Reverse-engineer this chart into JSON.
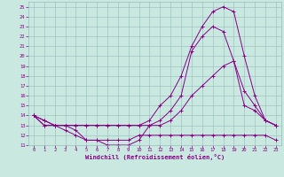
{
  "bg_color": "#c8e8e0",
  "line_color": "#880088",
  "grid_color": "#99bbbb",
  "xlabel": "Windchill (Refroidissement éolien,°C)",
  "xlim": [
    -0.5,
    23.5
  ],
  "ylim": [
    11,
    25.5
  ],
  "xticks": [
    0,
    1,
    2,
    3,
    4,
    5,
    6,
    7,
    8,
    9,
    10,
    11,
    12,
    13,
    14,
    15,
    16,
    17,
    18,
    19,
    20,
    21,
    22,
    23
  ],
  "yticks": [
    11,
    12,
    13,
    14,
    15,
    16,
    17,
    18,
    19,
    20,
    21,
    22,
    23,
    24,
    25
  ],
  "curves": [
    {
      "x": [
        0,
        1,
        2,
        3,
        4,
        5,
        6,
        7,
        8,
        9,
        10,
        11,
        12,
        13,
        14,
        15,
        16,
        17,
        18,
        19,
        20,
        21,
        22,
        23
      ],
      "y": [
        14,
        13,
        13,
        13,
        12.5,
        11.5,
        11.5,
        11.5,
        11.5,
        11.5,
        12,
        12,
        12,
        12,
        12,
        12,
        12,
        12,
        12,
        12,
        12,
        12,
        12,
        11.5
      ]
    },
    {
      "x": [
        0,
        1,
        2,
        3,
        4,
        5,
        6,
        7,
        8,
        9,
        10,
        11,
        12,
        13,
        14,
        15,
        16,
        17,
        18,
        19,
        20,
        21,
        22,
        23
      ],
      "y": [
        14,
        13.5,
        13,
        13,
        13,
        13,
        13,
        13,
        13,
        13,
        13,
        13,
        13.5,
        14.5,
        16,
        20.5,
        22,
        23,
        22.5,
        19.5,
        16.5,
        15,
        13.5,
        13
      ]
    },
    {
      "x": [
        0,
        1,
        2,
        3,
        4,
        5,
        6,
        7,
        8,
        9,
        10,
        11,
        12,
        13,
        14,
        15,
        16,
        17,
        18,
        19,
        20,
        21,
        22,
        23
      ],
      "y": [
        14,
        13.5,
        13,
        13,
        13,
        13,
        13,
        13,
        13,
        13,
        13,
        13.5,
        15,
        16,
        18,
        21,
        23,
        24.5,
        25,
        24.5,
        20,
        16,
        13.5,
        13
      ]
    },
    {
      "x": [
        0,
        1,
        2,
        3,
        4,
        5,
        6,
        7,
        8,
        9,
        10,
        11,
        12,
        13,
        14,
        15,
        16,
        17,
        18,
        19,
        20,
        21,
        22,
        23
      ],
      "y": [
        14,
        13,
        13,
        12.5,
        12,
        11.5,
        11.5,
        11,
        11,
        11,
        11.5,
        13,
        13,
        13.5,
        14.5,
        16,
        17,
        18,
        19,
        19.5,
        15,
        14.5,
        13.5,
        13
      ]
    }
  ]
}
